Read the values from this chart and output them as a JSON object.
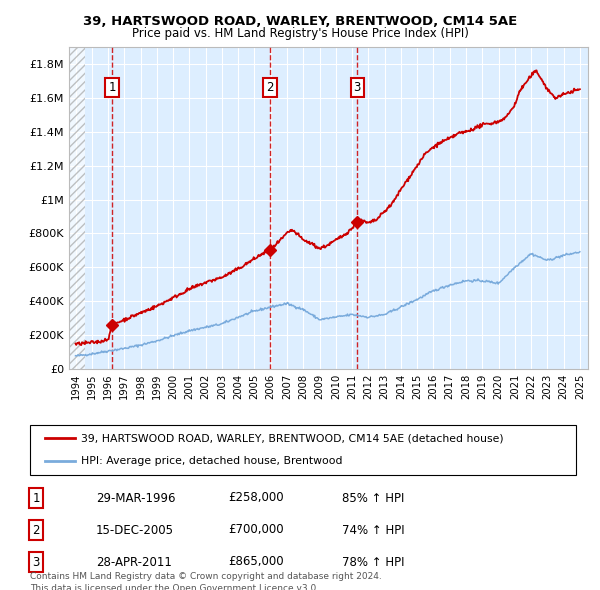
{
  "title1": "39, HARTSWOOD ROAD, WARLEY, BRENTWOOD, CM14 5AE",
  "title2": "Price paid vs. HM Land Registry's House Price Index (HPI)",
  "legend_line1": "39, HARTSWOOD ROAD, WARLEY, BRENTWOOD, CM14 5AE (detached house)",
  "legend_line2": "HPI: Average price, detached house, Brentwood",
  "footnote1": "Contains HM Land Registry data © Crown copyright and database right 2024.",
  "footnote2": "This data is licensed under the Open Government Licence v3.0.",
  "transactions": [
    {
      "num": 1,
      "date": "29-MAR-1996",
      "price": 258000,
      "pct": "85%",
      "x": 1996.25
    },
    {
      "num": 2,
      "date": "15-DEC-2005",
      "price": 700000,
      "pct": "74%",
      "x": 2005.96
    },
    {
      "num": 3,
      "date": "28-APR-2011",
      "price": 865000,
      "pct": "78%",
      "x": 2011.32
    }
  ],
  "hpi_color": "#7aabdc",
  "price_color": "#cc0000",
  "dot_color": "#cc0000",
  "background_color": "#ddeeff",
  "ylim": [
    0,
    1900000
  ],
  "xlim_start": 1993.6,
  "xlim_end": 2025.5,
  "yticks": [
    0,
    200000,
    400000,
    600000,
    800000,
    1000000,
    1200000,
    1400000,
    1600000,
    1800000
  ],
  "ytick_labels": [
    "£0",
    "£200K",
    "£400K",
    "£600K",
    "£800K",
    "£1M",
    "£1.2M",
    "£1.4M",
    "£1.6M",
    "£1.8M"
  ],
  "xticks": [
    1994,
    1995,
    1996,
    1997,
    1998,
    1999,
    2000,
    2001,
    2002,
    2003,
    2004,
    2005,
    2006,
    2007,
    2008,
    2009,
    2010,
    2011,
    2012,
    2013,
    2014,
    2015,
    2016,
    2017,
    2018,
    2019,
    2020,
    2021,
    2022,
    2023,
    2024,
    2025
  ],
  "hpi_anchors_x": [
    1994,
    1995,
    1996,
    1997,
    1998,
    1999,
    2000,
    2001,
    2002,
    2003,
    2004,
    2005,
    2006,
    2007,
    2008,
    2009,
    2010,
    2011,
    2012,
    2013,
    2014,
    2015,
    2016,
    2017,
    2018,
    2019,
    2020,
    2021,
    2022,
    2023,
    2024,
    2025
  ],
  "hpi_anchors_y": [
    75000,
    88000,
    105000,
    120000,
    140000,
    165000,
    195000,
    225000,
    245000,
    265000,
    305000,
    340000,
    365000,
    385000,
    350000,
    290000,
    305000,
    320000,
    305000,
    320000,
    365000,
    410000,
    460000,
    495000,
    520000,
    520000,
    505000,
    600000,
    680000,
    640000,
    670000,
    690000
  ],
  "price_anchors_x": [
    1994.0,
    1994.5,
    1995.0,
    1995.5,
    1996.0,
    1996.25,
    1996.5,
    1997,
    1998,
    1999,
    2000,
    2001,
    2002,
    2003,
    2004,
    2004.5,
    2005.0,
    2005.5,
    2005.96,
    2006.2,
    2006.5,
    2007.0,
    2007.3,
    2007.7,
    2008.0,
    2008.5,
    2009.0,
    2009.5,
    2010.0,
    2010.5,
    2011.0,
    2011.32,
    2011.6,
    2012.0,
    2012.5,
    2013.0,
    2013.5,
    2014.0,
    2014.5,
    2015.0,
    2015.5,
    2016.0,
    2016.5,
    2017.0,
    2017.5,
    2018.0,
    2018.5,
    2019.0,
    2019.5,
    2020.0,
    2020.5,
    2021.0,
    2021.3,
    2021.6,
    2022.0,
    2022.3,
    2022.6,
    2023.0,
    2023.5,
    2024.0,
    2024.5,
    2025.0
  ],
  "price_anchors_y": [
    145000,
    150000,
    155000,
    160000,
    175000,
    258000,
    270000,
    290000,
    330000,
    370000,
    420000,
    470000,
    510000,
    540000,
    590000,
    620000,
    650000,
    680000,
    700000,
    720000,
    750000,
    800000,
    820000,
    790000,
    760000,
    740000,
    710000,
    730000,
    760000,
    790000,
    830000,
    865000,
    875000,
    860000,
    880000,
    930000,
    980000,
    1060000,
    1130000,
    1200000,
    1270000,
    1310000,
    1340000,
    1360000,
    1390000,
    1400000,
    1420000,
    1440000,
    1450000,
    1460000,
    1490000,
    1560000,
    1640000,
    1680000,
    1730000,
    1760000,
    1720000,
    1650000,
    1600000,
    1620000,
    1640000,
    1650000
  ]
}
